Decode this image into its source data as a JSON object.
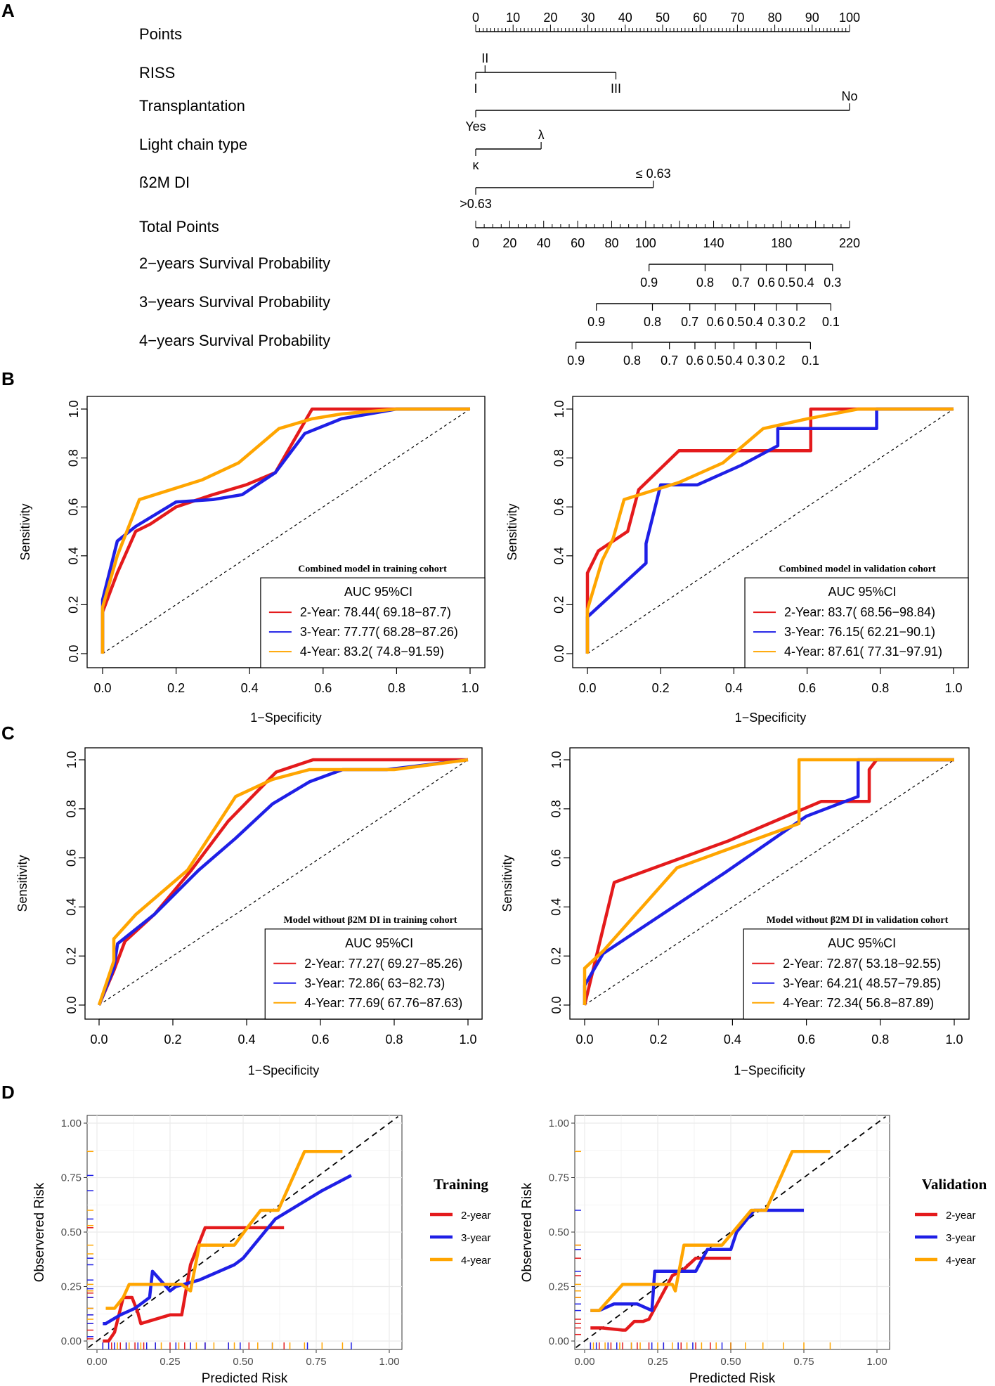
{
  "panel_labels": [
    "A",
    "B",
    "C",
    "D"
  ],
  "colors": {
    "red": "#e41a1c",
    "blue": "#1f1fe6",
    "orange": "#ffa500",
    "axis": "#000000",
    "grid": "#ebebeb"
  },
  "nomogram": {
    "points_label": "Points",
    "points_ticks": [
      "0",
      "10",
      "20",
      "30",
      "40",
      "50",
      "60",
      "70",
      "80",
      "90",
      "100"
    ],
    "variables": [
      {
        "name": "RISS",
        "levels": [
          {
            "label": "I",
            "points": 0,
            "side": "below"
          },
          {
            "label": "II",
            "points": 2.5,
            "side": "above"
          },
          {
            "label": "III",
            "points": 37.5,
            "side": "below"
          }
        ]
      },
      {
        "name": "Transplantation",
        "levels": [
          {
            "label": "Yes",
            "points": 0,
            "side": "below"
          },
          {
            "label": "No",
            "points": 100,
            "side": "above"
          }
        ]
      },
      {
        "name": "Light chain type",
        "levels": [
          {
            "label": "κ",
            "points": 0,
            "side": "below"
          },
          {
            "label": "λ",
            "points": 17.5,
            "side": "above"
          }
        ]
      },
      {
        "name": "ß2M DI",
        "levels": [
          {
            "label": ">0.63",
            "points": 0,
            "side": "below"
          },
          {
            "label": "≤ 0.63",
            "points": 47.5,
            "side": "above"
          }
        ]
      }
    ],
    "total_points_label": "Total Points",
    "total_ticks": [
      "0",
      "20",
      "40",
      "60",
      "80",
      "100",
      "140",
      "180",
      "220"
    ],
    "total_tick_values": [
      0,
      20,
      40,
      60,
      80,
      100,
      140,
      180,
      220
    ],
    "survival_scales": [
      {
        "name": "2−years Survival Probability",
        "labels": [
          "0.9",
          "0.8",
          "0.7",
          "0.6",
          "0.5",
          "0.4",
          "0.3"
        ],
        "positions": [
          102,
          135,
          156,
          171,
          183,
          194,
          210
        ]
      },
      {
        "name": "3−years Survival Probability",
        "labels": [
          "0.9",
          "0.8",
          "0.7",
          "0.6",
          "0.5",
          "0.4",
          "0.3",
          "0.2",
          "0.1"
        ],
        "positions": [
          71,
          104,
          126,
          141,
          153,
          164,
          177,
          189,
          209
        ]
      },
      {
        "name": "4−years Survival Probability",
        "labels": [
          "0.9",
          "0.8",
          "0.7",
          "0.6",
          "0.5",
          "0.4",
          "0.3",
          "0.2",
          "0.1"
        ],
        "positions": [
          59,
          92,
          114,
          129,
          141,
          152,
          165,
          177,
          197
        ]
      }
    ]
  },
  "chart_data": [
    {
      "type": "line",
      "id": "roc-train-combined",
      "title": "Combined model in training cohort",
      "xlabel": "1−Specificity",
      "ylabel": "Sensitivity",
      "xlim": [
        0,
        1
      ],
      "ylim": [
        0,
        1
      ],
      "ticks": [
        "0.0",
        "0.2",
        "0.4",
        "0.6",
        "0.8",
        "1.0"
      ],
      "legend_title": "AUC 95%CI",
      "series": [
        {
          "name": "2-Year: 78.44( 69.18−87.7)",
          "color": "red",
          "x": [
            0,
            0,
            0.04,
            0.09,
            0.13,
            0.2,
            0.3,
            0.39,
            0.47,
            0.57,
            0.65,
            0.8,
            1
          ],
          "y": [
            0,
            0.17,
            0.33,
            0.5,
            0.53,
            0.6,
            0.65,
            0.69,
            0.74,
            1,
            1,
            1,
            1
          ]
        },
        {
          "name": "3-Year: 77.77( 68.28−87.26)",
          "color": "blue",
          "x": [
            0,
            0,
            0.04,
            0.09,
            0.2,
            0.3,
            0.38,
            0.47,
            0.55,
            0.65,
            0.8,
            1
          ],
          "y": [
            0,
            0.22,
            0.46,
            0.52,
            0.62,
            0.63,
            0.65,
            0.74,
            0.9,
            0.96,
            1,
            1
          ]
        },
        {
          "name": "4-Year: 83.2( 74.8−91.59)",
          "color": "orange",
          "x": [
            0,
            0,
            0.04,
            0.1,
            0.27,
            0.37,
            0.48,
            0.57,
            0.65,
            0.8,
            1
          ],
          "y": [
            0,
            0.19,
            0.4,
            0.63,
            0.71,
            0.78,
            0.92,
            0.96,
            0.98,
            1,
            1
          ]
        }
      ]
    },
    {
      "type": "line",
      "id": "roc-valid-combined",
      "title": "Combined model in validation cohort",
      "xlabel": "1−Specificity",
      "ylabel": "Sensitivity",
      "xlim": [
        0,
        1
      ],
      "ylim": [
        0,
        1
      ],
      "ticks": [
        "0.0",
        "0.2",
        "0.4",
        "0.6",
        "0.8",
        "1.0"
      ],
      "legend_title": "AUC 95%CI",
      "series": [
        {
          "name": "2-Year: 83.7( 68.56−98.84)",
          "color": "red",
          "x": [
            0,
            0,
            0.03,
            0.11,
            0.14,
            0.25,
            0.42,
            0.61,
            0.61,
            0.8,
            1
          ],
          "y": [
            0,
            0.33,
            0.42,
            0.5,
            0.67,
            0.83,
            0.83,
            0.83,
            1,
            1,
            1
          ]
        },
        {
          "name": "3-Year: 76.15( 62.21−90.1)",
          "color": "blue",
          "x": [
            0,
            0,
            0.16,
            0.16,
            0.2,
            0.3,
            0.42,
            0.52,
            0.52,
            0.79,
            0.79,
            1
          ],
          "y": [
            0,
            0.15,
            0.37,
            0.45,
            0.69,
            0.69,
            0.77,
            0.85,
            0.92,
            0.92,
            1,
            1
          ]
        },
        {
          "name": "4-Year: 87.61( 77.31−97.91)",
          "color": "orange",
          "x": [
            0,
            0,
            0.04,
            0.07,
            0.1,
            0.25,
            0.37,
            0.48,
            0.6,
            0.74,
            1
          ],
          "y": [
            0,
            0.18,
            0.38,
            0.47,
            0.63,
            0.7,
            0.78,
            0.92,
            0.96,
            1,
            1
          ]
        }
      ]
    },
    {
      "type": "line",
      "id": "roc-train-without",
      "title": "Model without β2M DI in training cohort",
      "xlabel": "1−Specificity",
      "ylabel": "Sensitivity",
      "xlim": [
        0,
        1
      ],
      "ylim": [
        0,
        1
      ],
      "ticks": [
        "0.0",
        "0.2",
        "0.4",
        "0.6",
        "0.8",
        "1.0"
      ],
      "legend_title": "AUC 95%CI",
      "series": [
        {
          "name": "2-Year: 77.27( 69.27−85.26)",
          "color": "red",
          "x": [
            0,
            0.04,
            0.07,
            0.15,
            0.25,
            0.35,
            0.48,
            0.58,
            0.8,
            1
          ],
          "y": [
            0,
            0.14,
            0.26,
            0.37,
            0.55,
            0.75,
            0.95,
            1,
            1,
            1
          ]
        },
        {
          "name": "3-Year: 72.86( 63−82.73)",
          "color": "blue",
          "x": [
            0,
            0.04,
            0.05,
            0.15,
            0.27,
            0.37,
            0.47,
            0.57,
            0.66,
            0.78,
            1
          ],
          "y": [
            0,
            0.15,
            0.25,
            0.37,
            0.55,
            0.68,
            0.82,
            0.91,
            0.96,
            0.96,
            1
          ]
        },
        {
          "name": "4-Year: 77.69( 67.76−87.63)",
          "color": "orange",
          "x": [
            0,
            0.04,
            0.04,
            0.1,
            0.24,
            0.37,
            0.47,
            0.57,
            0.66,
            0.8,
            1
          ],
          "y": [
            0,
            0.18,
            0.27,
            0.37,
            0.55,
            0.85,
            0.92,
            0.96,
            0.96,
            0.96,
            1
          ]
        }
      ]
    },
    {
      "type": "line",
      "id": "roc-valid-without",
      "title": "Model without β2M DI in validation cohort",
      "xlabel": "1−Specificity",
      "ylabel": "Sensitivity",
      "xlim": [
        0,
        1
      ],
      "ylim": [
        0,
        1
      ],
      "ticks": [
        "0.0",
        "0.2",
        "0.4",
        "0.6",
        "0.8",
        "1.0"
      ],
      "legend_title": "AUC 95%CI",
      "series": [
        {
          "name": "2-Year: 72.87( 53.18−92.55)",
          "color": "red",
          "x": [
            0,
            0.04,
            0.08,
            0.39,
            0.64,
            0.77,
            0.77,
            0.79,
            1
          ],
          "y": [
            0,
            0.25,
            0.5,
            0.67,
            0.83,
            0.83,
            0.96,
            1,
            1
          ]
        },
        {
          "name": "3-Year: 64.21( 48.57−79.85)",
          "color": "blue",
          "x": [
            0,
            0,
            0.05,
            0.38,
            0.6,
            0.74,
            0.74,
            0.78,
            1
          ],
          "y": [
            0,
            0.08,
            0.21,
            0.54,
            0.77,
            0.85,
            1,
            1,
            1
          ]
        },
        {
          "name": "4-Year: 72.34( 56.8−87.89)",
          "color": "orange",
          "x": [
            0,
            0,
            0.05,
            0.25,
            0.58,
            0.58,
            0.73,
            0.9,
            1
          ],
          "y": [
            0,
            0.15,
            0.22,
            0.56,
            0.74,
            1,
            1,
            1,
            1
          ]
        }
      ]
    },
    {
      "type": "line",
      "id": "calib-training",
      "legend_title": "Training",
      "xlabel": "Predicted Risk",
      "ylabel": "Observered Risk",
      "xlim": [
        -0.03,
        1.03
      ],
      "ylim": [
        -0.03,
        1.03
      ],
      "ticks": [
        "0.00",
        "0.25",
        "0.50",
        "0.75",
        "1.00"
      ],
      "series": [
        {
          "name": "2-year",
          "color": "red",
          "x": [
            0.02,
            0.04,
            0.06,
            0.09,
            0.12,
            0.14,
            0.15,
            0.25,
            0.27,
            0.29,
            0.32,
            0.37,
            0.52,
            0.64
          ],
          "y": [
            0,
            0,
            0.04,
            0.2,
            0.2,
            0.13,
            0.08,
            0.12,
            0.12,
            0.12,
            0.35,
            0.52,
            0.52,
            0.52
          ]
        },
        {
          "name": "3-year",
          "color": "blue",
          "x": [
            0.02,
            0.03,
            0.08,
            0.13,
            0.18,
            0.19,
            0.25,
            0.27,
            0.35,
            0.47,
            0.5,
            0.61,
            0.77,
            0.87
          ],
          "y": [
            0.08,
            0.08,
            0.12,
            0.15,
            0.2,
            0.32,
            0.23,
            0.25,
            0.28,
            0.35,
            0.38,
            0.56,
            0.69,
            0.76
          ]
        },
        {
          "name": "4-year",
          "color": "orange",
          "x": [
            0.03,
            0.06,
            0.06,
            0.09,
            0.11,
            0.2,
            0.29,
            0.32,
            0.35,
            0.42,
            0.47,
            0.52,
            0.56,
            0.62,
            0.71,
            0.84
          ],
          "y": [
            0.15,
            0.15,
            0.15,
            0.2,
            0.26,
            0.26,
            0.26,
            0.23,
            0.44,
            0.44,
            0.44,
            0.53,
            0.6,
            0.6,
            0.87,
            0.87
          ]
        }
      ],
      "rug_y": {
        "red": [
          0.01,
          0.05,
          0.08,
          0.12,
          0.2,
          0.22,
          0.52
        ],
        "blue": [
          0.02,
          0.08,
          0.12,
          0.15,
          0.2,
          0.24,
          0.28,
          0.35,
          0.38,
          0.56,
          0.69,
          0.76
        ],
        "orange": [
          0.1,
          0.15,
          0.23,
          0.26,
          0.4,
          0.44,
          0.53,
          0.6,
          0.87
        ]
      },
      "rug_x": {
        "red": [
          0.02,
          0.05,
          0.08,
          0.1,
          0.13,
          0.16,
          0.2,
          0.25,
          0.3,
          0.37,
          0.45,
          0.52,
          0.64
        ],
        "blue": [
          0.02,
          0.04,
          0.06,
          0.1,
          0.14,
          0.17,
          0.2,
          0.27,
          0.32,
          0.37,
          0.45,
          0.49,
          0.6,
          0.72,
          0.87
        ],
        "orange": [
          0.07,
          0.11,
          0.15,
          0.22,
          0.28,
          0.34,
          0.4,
          0.47,
          0.55,
          0.6,
          0.66,
          0.71,
          0.77,
          0.84
        ]
      }
    },
    {
      "type": "line",
      "id": "calib-validation",
      "legend_title": "Validation",
      "xlabel": "Predicted Risk",
      "ylabel": "Observered Risk",
      "xlim": [
        -0.03,
        1.03
      ],
      "ylim": [
        -0.03,
        1.03
      ],
      "ticks": [
        "0.00",
        "0.25",
        "0.50",
        "0.75",
        "1.00"
      ],
      "series": [
        {
          "name": "2-year",
          "color": "red",
          "x": [
            0.02,
            0.04,
            0.06,
            0.13,
            0.14,
            0.17,
            0.2,
            0.22,
            0.24,
            0.3,
            0.34,
            0.38,
            0.42,
            0.48,
            0.5
          ],
          "y": [
            0.06,
            0.06,
            0.06,
            0.05,
            0.05,
            0.09,
            0.09,
            0.1,
            0.15,
            0.3,
            0.33,
            0.38,
            0.38,
            0.38,
            0.38
          ]
        },
        {
          "name": "3-year",
          "color": "blue",
          "x": [
            0.02,
            0.05,
            0.1,
            0.18,
            0.23,
            0.24,
            0.3,
            0.38,
            0.42,
            0.5,
            0.52,
            0.58,
            0.62,
            0.75
          ],
          "y": [
            0.14,
            0.14,
            0.17,
            0.17,
            0.14,
            0.32,
            0.32,
            0.32,
            0.42,
            0.42,
            0.5,
            0.6,
            0.6,
            0.6
          ]
        },
        {
          "name": "4-year",
          "color": "orange",
          "x": [
            0.02,
            0.05,
            0.09,
            0.13,
            0.19,
            0.3,
            0.31,
            0.34,
            0.47,
            0.57,
            0.62,
            0.71,
            0.84
          ],
          "y": [
            0.14,
            0.14,
            0.2,
            0.26,
            0.26,
            0.26,
            0.23,
            0.44,
            0.44,
            0.6,
            0.6,
            0.87,
            0.87
          ]
        }
      ],
      "rug_y": {
        "red": [
          0.03,
          0.06,
          0.08,
          0.1,
          0.2,
          0.3,
          0.38,
          0.44
        ],
        "blue": [
          0.14,
          0.17,
          0.32,
          0.42,
          0.6
        ],
        "orange": [
          0.2,
          0.23,
          0.26,
          0.44,
          0.87
        ]
      },
      "rug_x": {
        "red": [
          0.02,
          0.05,
          0.09,
          0.13,
          0.18,
          0.22,
          0.27,
          0.33,
          0.38,
          0.43,
          0.5
        ],
        "blue": [
          0.02,
          0.04,
          0.08,
          0.11,
          0.16,
          0.23,
          0.27,
          0.32,
          0.37,
          0.47,
          0.5
        ],
        "orange": [
          0.03,
          0.07,
          0.12,
          0.16,
          0.19,
          0.25,
          0.3,
          0.35,
          0.4,
          0.45,
          0.5,
          0.55,
          0.61,
          0.68,
          0.75,
          0.84
        ]
      }
    }
  ]
}
